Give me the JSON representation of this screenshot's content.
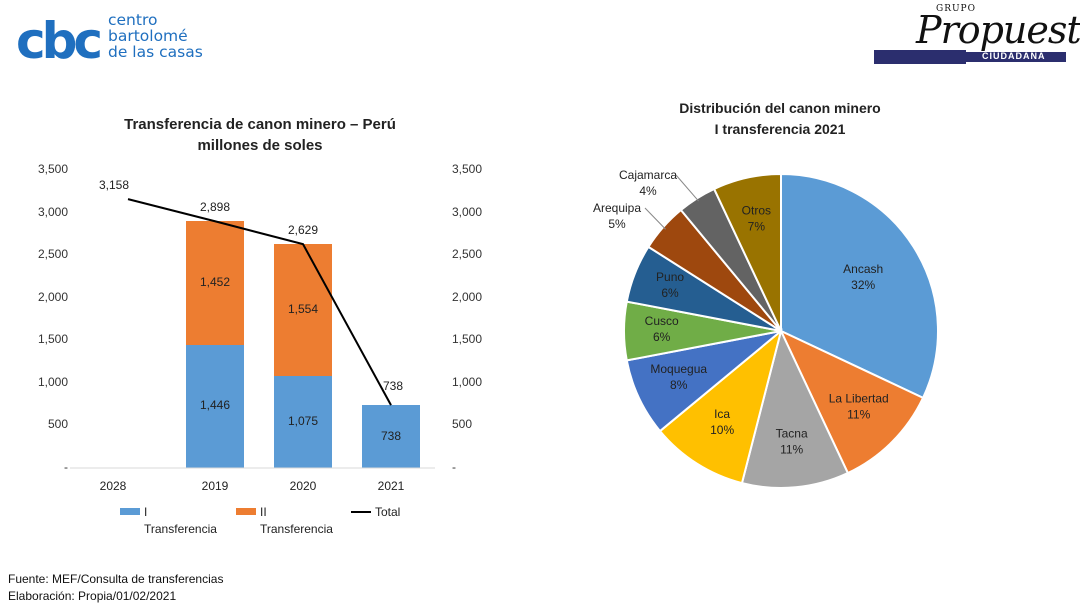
{
  "logos": {
    "cbc": {
      "mark": "cbc",
      "line1": "centro",
      "line2": "bartolomé",
      "line3": "de las casas",
      "color": "#1f6fbf"
    },
    "grupo_propuesta": {
      "top": "GRUPO",
      "main": "Propuesta",
      "bottom": "CIUDADANA",
      "bar_color": "#2b2e6e"
    }
  },
  "chart_data": [
    {
      "type": "bar",
      "stacked": true,
      "title_line1": "Transferencia de canon minero – Perú",
      "title_line2": "millones de soles",
      "categories": [
        "2028",
        "2019",
        "2020",
        "2021"
      ],
      "series": [
        {
          "name": "I Transferencia",
          "values": [
            0,
            1446,
            1075,
            738
          ],
          "labels": [
            "",
            "1,446",
            "1,075",
            "738"
          ],
          "color": "#5b9bd5"
        },
        {
          "name": "II Transferencia",
          "values": [
            0,
            1452,
            1554,
            0
          ],
          "labels": [
            "",
            "1,452",
            "1,554",
            ""
          ],
          "color": "#ed7d31"
        }
      ],
      "line_series": {
        "name": "Total",
        "values": [
          3158,
          2898,
          2629,
          738
        ],
        "labels": [
          "3,158",
          "2,898",
          "2,629",
          "738"
        ],
        "color": "#000000"
      },
      "ylim": [
        0,
        3500
      ],
      "y_ticks": [
        0,
        500,
        1000,
        1500,
        2000,
        2500,
        3000,
        3500
      ],
      "y_tick_labels": [
        "-",
        "500",
        "1,000",
        "1,500",
        "2,000",
        "2,500",
        "3,000",
        "3,500"
      ],
      "secondary_axis_same_scale": true,
      "grid": false,
      "legend": {
        "position": "bottom",
        "items": [
          {
            "line1": "I",
            "line2": "Transferencia",
            "kind": "box",
            "color": "#5b9bd5"
          },
          {
            "line1": "II",
            "line2": "Transferencia",
            "kind": "box",
            "color": "#ed7d31"
          },
          {
            "line1": "Total",
            "line2": "",
            "kind": "line",
            "color": "#000000"
          }
        ]
      }
    },
    {
      "type": "pie",
      "title_line1": "Distribución del canon minero",
      "title_line2": "I transferencia 2021",
      "start": "12 o'clock",
      "direction": "clockwise",
      "slices": [
        {
          "label": "Ancash",
          "value": 32,
          "text": "32%",
          "color": "#5b9bd5"
        },
        {
          "label": "La Libertad",
          "value": 11,
          "text": "11%",
          "color": "#ed7d31"
        },
        {
          "label": "Tacna",
          "value": 11,
          "text": "11%",
          "color": "#a5a5a5"
        },
        {
          "label": "Ica",
          "value": 10,
          "text": "10%",
          "color": "#ffc000"
        },
        {
          "label": "Moquegua",
          "value": 8,
          "text": "8%",
          "color": "#4472c4"
        },
        {
          "label": "Cusco",
          "value": 6,
          "text": "6%",
          "color": "#70ad47"
        },
        {
          "label": "Puno",
          "value": 6,
          "text": "6%",
          "color": "#255e91"
        },
        {
          "label": "Arequipa",
          "value": 5,
          "text": "5%",
          "color": "#9e480e"
        },
        {
          "label": "Cajamarca",
          "value": 4,
          "text": "4%",
          "color": "#636363"
        },
        {
          "label": "Otros",
          "value": 7,
          "text": "7%",
          "color": "#997300"
        }
      ]
    }
  ],
  "footer": {
    "source": "Fuente: MEF/Consulta de transferencias",
    "elaboration": "Elaboración: Propia/01/02/2021"
  }
}
